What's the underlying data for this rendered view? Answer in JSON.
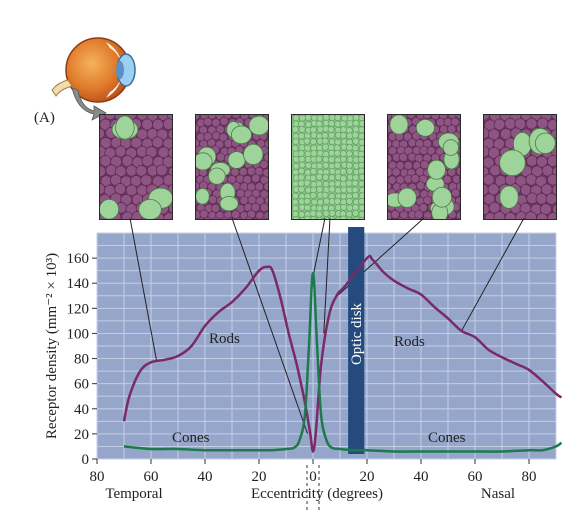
{
  "panel_label": "(A)",
  "tiles": [
    {
      "name": "temporal-far"
    },
    {
      "name": "temporal-near"
    },
    {
      "name": "fovea"
    },
    {
      "name": "nasal-near"
    },
    {
      "name": "nasal-far"
    }
  ],
  "colors": {
    "plot_bg": "#96a6cb",
    "grid": "#c4cde4",
    "rods": "#7b2a68",
    "cones": "#1d7a4a",
    "optic_disk": "#244a7e",
    "rod_tile": "#8e5583",
    "cone_tile": "#9ed39a"
  },
  "chart_data": {
    "type": "line",
    "ylabel": "Receptor density (mm⁻² × 10³)",
    "xlabel": "Eccentricity (degrees)",
    "x_left_label": "Temporal",
    "x_right_label": "Nasal",
    "x_ticks": [
      "80",
      "60",
      "40",
      "20",
      "0",
      "20",
      "40",
      "60",
      "80"
    ],
    "y_ticks": [
      "0",
      "20",
      "40",
      "60",
      "80",
      "100",
      "120",
      "140",
      "160"
    ],
    "ylim": [
      0,
      180
    ],
    "xlim": [
      -80,
      90
    ],
    "optic_disk_label": "Optic disk",
    "optic_disk_range": [
      13,
      19
    ],
    "series": [
      {
        "name": "Rods",
        "x": [
          -70,
          -68,
          -64,
          -60,
          -55,
          -50,
          -45,
          -40,
          -35,
          -30,
          -25,
          -20,
          -17,
          -15,
          -12,
          -9,
          -6,
          -3,
          -1,
          0,
          1,
          3,
          6,
          9,
          12,
          20,
          22,
          26,
          30,
          35,
          40,
          45,
          50,
          55,
          60,
          65,
          70,
          75,
          80,
          85,
          90,
          92
        ],
        "y": [
          30,
          50,
          70,
          77,
          79,
          82,
          90,
          106,
          117,
          125,
          136,
          150,
          153,
          150,
          128,
          100,
          75,
          45,
          20,
          6,
          20,
          75,
          115,
          131,
          138,
          160,
          159,
          149,
          142,
          136,
          131,
          121,
          112,
          102,
          97,
          87,
          81,
          76,
          71,
          62,
          52,
          49
        ]
      },
      {
        "name": "Cones",
        "x": [
          -70,
          -60,
          -50,
          -40,
          -30,
          -20,
          -15,
          -10,
          -7,
          -5,
          -3,
          -1.5,
          0,
          1.5,
          3,
          5,
          7,
          10,
          15,
          20,
          30,
          40,
          50,
          60,
          70,
          80,
          85,
          90,
          92
        ],
        "y": [
          10,
          8,
          8,
          7,
          7,
          7,
          7,
          8,
          9,
          15,
          35,
          90,
          148,
          90,
          35,
          15,
          9,
          8,
          7,
          7,
          6,
          6,
          6,
          6,
          6,
          7,
          7,
          10,
          13
        ]
      }
    ]
  }
}
